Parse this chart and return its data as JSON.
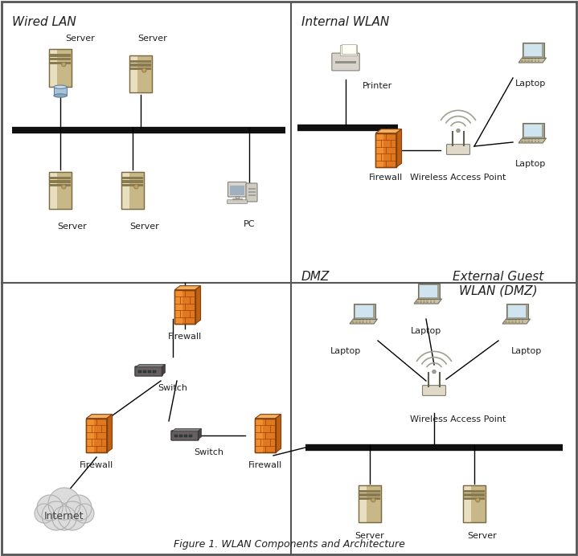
{
  "title": "Figure 1. WLAN Components and Architecture",
  "bg_color": "#ffffff",
  "border_color": "#555555",
  "section_labels": {
    "wired_lan": "Wired LAN",
    "internal_wlan": "Internal WLAN",
    "dmz": "DMZ",
    "external_guest": "External Guest\nWLAN (DMZ)"
  },
  "device_labels": {
    "server": "Server",
    "printer": "Printer",
    "firewall": "Firewall",
    "wap": "Wireless Access Point",
    "laptop": "Laptop",
    "pc": "PC",
    "switch": "Switch",
    "internet": "Internet"
  },
  "firewall_color": "#E07820",
  "firewall_brick": "#C06010",
  "server_body": "#D4C4A0",
  "server_dark": "#B8A880",
  "server_darker": "#9C8C60",
  "switch_color": "#606060",
  "switch_dark": "#404040",
  "laptop_body": "#C8C0A8",
  "laptop_screen": "#D8E8F0",
  "cloud_color": "#D8D8D8",
  "line_color": "#000000",
  "bus_color": "#101010",
  "label_fontsize": 8,
  "section_fontsize": 11
}
